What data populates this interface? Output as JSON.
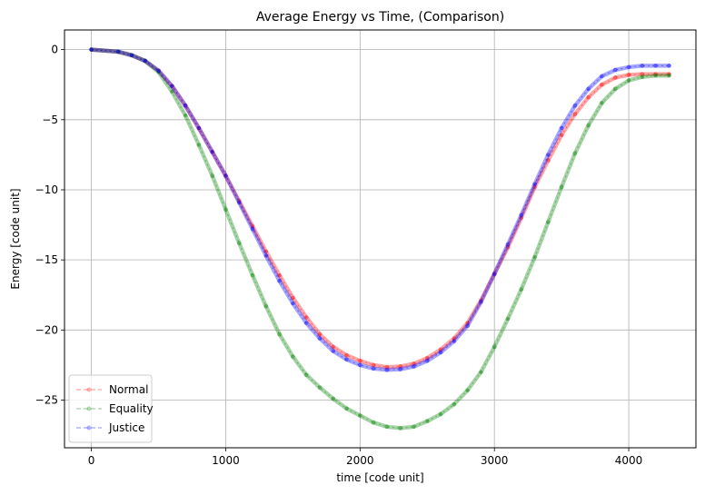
{
  "chart_data": {
    "type": "line",
    "title": "Average Energy vs Time, (Comparison)",
    "xlabel": "time [code unit]",
    "ylabel": "Energy [code unit]",
    "xlim": [
      -200,
      4500
    ],
    "ylim": [
      -28.4,
      1.4
    ],
    "xticks": [
      0,
      1000,
      2000,
      3000,
      4000
    ],
    "yticks": [
      0,
      -5,
      -10,
      -15,
      -20,
      -25
    ],
    "grid": true,
    "legend_position": "lower-left",
    "series": [
      {
        "name": "Normal",
        "color": "#ff0000",
        "x": [
          0,
          200,
          300,
          400,
          500,
          600,
          700,
          800,
          900,
          1000,
          1100,
          1200,
          1300,
          1400,
          1500,
          1600,
          1700,
          1800,
          1900,
          2000,
          2100,
          2200,
          2300,
          2400,
          2500,
          2600,
          2700,
          2800,
          2900,
          3000,
          3100,
          3200,
          3300,
          3400,
          3500,
          3600,
          3700,
          3800,
          3900,
          4000,
          4100,
          4200,
          4300
        ],
        "y": [
          0,
          -0.15,
          -0.4,
          -0.8,
          -1.5,
          -2.6,
          -4.0,
          -5.6,
          -7.3,
          -9.0,
          -10.8,
          -12.6,
          -14.4,
          -16.1,
          -17.7,
          -19.1,
          -20.3,
          -21.2,
          -21.8,
          -22.2,
          -22.5,
          -22.65,
          -22.6,
          -22.4,
          -22.0,
          -21.4,
          -20.6,
          -19.5,
          -17.9,
          -16.0,
          -14.1,
          -12.0,
          -9.8,
          -7.9,
          -6.1,
          -4.6,
          -3.4,
          -2.5,
          -2.0,
          -1.8,
          -1.75,
          -1.75,
          -1.75
        ]
      },
      {
        "name": "Equality",
        "color": "#008000",
        "x": [
          0,
          200,
          300,
          400,
          500,
          600,
          700,
          800,
          900,
          1000,
          1100,
          1200,
          1300,
          1400,
          1500,
          1600,
          1700,
          1800,
          1900,
          2000,
          2100,
          2200,
          2300,
          2400,
          2500,
          2600,
          2700,
          2800,
          2900,
          3000,
          3100,
          3200,
          3300,
          3400,
          3500,
          3600,
          3700,
          3800,
          3900,
          4000,
          4100,
          4200,
          4300
        ],
        "y": [
          0,
          -0.15,
          -0.4,
          -0.8,
          -1.6,
          -3.0,
          -4.7,
          -6.8,
          -9.0,
          -11.4,
          -13.8,
          -16.1,
          -18.3,
          -20.3,
          -21.9,
          -23.2,
          -24.1,
          -24.9,
          -25.6,
          -26.1,
          -26.6,
          -26.9,
          -27.0,
          -26.9,
          -26.5,
          -26.0,
          -25.3,
          -24.3,
          -23.0,
          -21.2,
          -19.2,
          -17.1,
          -14.8,
          -12.3,
          -9.8,
          -7.4,
          -5.4,
          -3.8,
          -2.8,
          -2.2,
          -1.95,
          -1.85,
          -1.85
        ]
      },
      {
        "name": "Justice",
        "color": "#0000ff",
        "x": [
          0,
          200,
          300,
          400,
          500,
          600,
          700,
          800,
          900,
          1000,
          1100,
          1200,
          1300,
          1400,
          1500,
          1600,
          1700,
          1800,
          1900,
          2000,
          2100,
          2200,
          2300,
          2400,
          2500,
          2600,
          2700,
          2800,
          2900,
          3000,
          3100,
          3200,
          3300,
          3400,
          3500,
          3600,
          3700,
          3800,
          3900,
          4000,
          4100,
          4200,
          4300
        ],
        "y": [
          0,
          -0.15,
          -0.4,
          -0.8,
          -1.5,
          -2.6,
          -4.0,
          -5.6,
          -7.3,
          -9.0,
          -10.9,
          -12.8,
          -14.7,
          -16.5,
          -18.1,
          -19.5,
          -20.6,
          -21.5,
          -22.1,
          -22.5,
          -22.75,
          -22.85,
          -22.8,
          -22.6,
          -22.2,
          -21.6,
          -20.8,
          -19.7,
          -18.0,
          -16.0,
          -13.9,
          -11.8,
          -9.6,
          -7.5,
          -5.6,
          -4.0,
          -2.8,
          -1.9,
          -1.45,
          -1.25,
          -1.15,
          -1.15,
          -1.15
        ]
      }
    ]
  }
}
